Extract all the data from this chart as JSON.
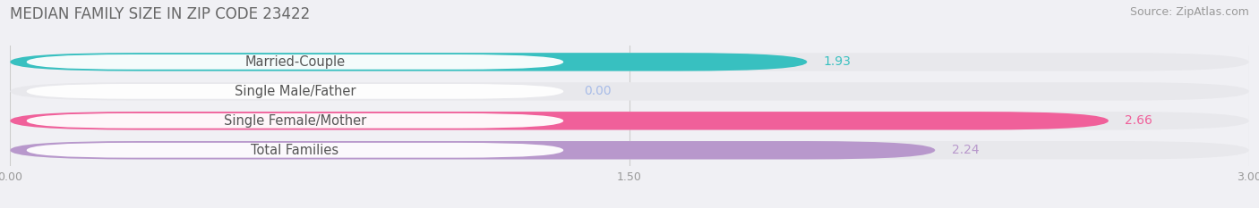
{
  "title": "MEDIAN FAMILY SIZE IN ZIP CODE 23422",
  "source": "Source: ZipAtlas.com",
  "categories": [
    "Married-Couple",
    "Single Male/Father",
    "Single Female/Mother",
    "Total Families"
  ],
  "values": [
    1.93,
    0.0,
    2.66,
    2.24
  ],
  "bar_colors": [
    "#38c0c0",
    "#a8bce8",
    "#f0609a",
    "#b898cc"
  ],
  "track_color": "#e8e8ec",
  "label_bg": "#ffffff",
  "xlim": [
    0,
    3.0
  ],
  "xticks": [
    0.0,
    1.5,
    3.0
  ],
  "xtick_labels": [
    "0.00",
    "1.50",
    "3.00"
  ],
  "bar_height": 0.62,
  "background_color": "#f0f0f4",
  "title_fontsize": 12,
  "source_fontsize": 9,
  "label_fontsize": 10.5,
  "value_fontsize": 10
}
